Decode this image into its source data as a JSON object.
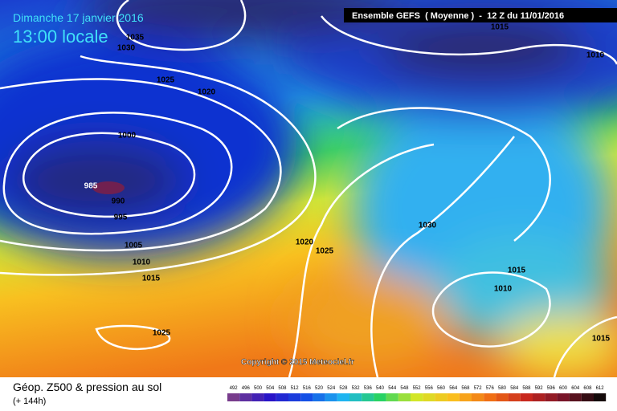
{
  "header": {
    "date": "Dimanche 17 janvier 2016",
    "time": "13:00 locale",
    "run": "Ensemble GEFS  ( Moyenne )  -  12 Z du 11/01/2016"
  },
  "isobars": [
    {
      "label": "1035"
    },
    {
      "label": "1030"
    },
    {
      "label": "1025"
    },
    {
      "label": "1020"
    },
    {
      "label": "1000"
    },
    {
      "label": "985"
    },
    {
      "label": "990"
    },
    {
      "label": "995"
    },
    {
      "label": "1005"
    },
    {
      "label": "1010"
    },
    {
      "label": "1015"
    },
    {
      "label": "1025"
    },
    {
      "label": "1020"
    },
    {
      "label": "1025"
    },
    {
      "label": "1030"
    },
    {
      "label": "1015"
    },
    {
      "label": "1010"
    },
    {
      "label": "1015"
    },
    {
      "label": "1015"
    },
    {
      "label": "1010"
    }
  ],
  "copyright": "Copyright © 2015 Meteociel.fr",
  "footer": {
    "title": "Géop. Z500 & pression au sol",
    "lead": "(+ 144h)"
  },
  "scale": [
    492,
    496,
    500,
    504,
    508,
    512,
    516,
    520,
    524,
    528,
    532,
    536,
    540,
    544,
    548,
    552,
    556,
    560,
    564,
    568,
    572,
    576,
    580,
    584,
    588,
    592,
    596,
    600,
    604,
    608,
    612
  ]
}
